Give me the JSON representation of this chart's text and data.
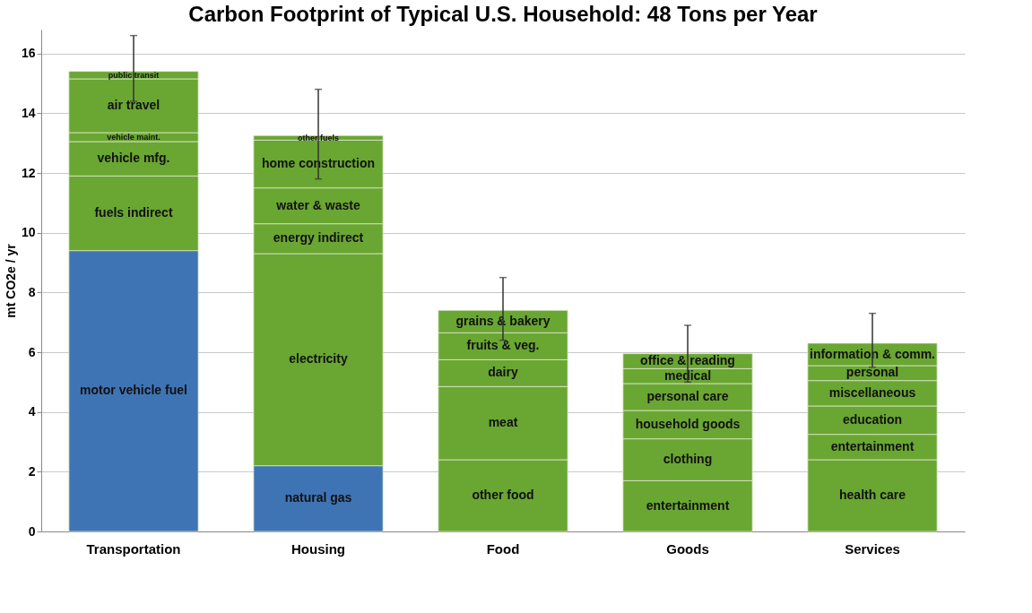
{
  "chart_data": {
    "type": "bar",
    "stacked": true,
    "title": "Carbon Footprint of Typical U.S. Household: 48 Tons per Year",
    "ylabel": "mt CO2e / yr",
    "categories": [
      "Transportation",
      "Housing",
      "Food",
      "Goods",
      "Services"
    ],
    "series": [
      {
        "colors": [
          "#3f74b4",
          "#3f74b4",
          "#6aa632",
          "#6aa632",
          "#6aa632"
        ],
        "values": [
          9.4,
          2.2,
          2.4,
          1.7,
          2.4
        ],
        "value_labels": [
          "motor vehicle fuel",
          "natural gas",
          "other food",
          "entertainment",
          "health care"
        ]
      },
      {
        "color": "#6aa632",
        "values": [
          2.5,
          7.1,
          2.45,
          1.4,
          0.85
        ],
        "value_labels": [
          "fuels indirect",
          "electricity",
          "meat",
          "clothing",
          "entertainment"
        ]
      },
      {
        "color": "#6aa632",
        "values": [
          1.15,
          1.0,
          0.9,
          0.95,
          0.95
        ],
        "value_labels": [
          "vehicle mfg.",
          "energy indirect",
          "dairy",
          "household goods",
          "education"
        ]
      },
      {
        "color": "#6aa632",
        "values": [
          0.3,
          1.2,
          0.9,
          0.9,
          0.85
        ],
        "value_labels": [
          "vehicle maint.",
          "water & waste",
          "fruits & veg.",
          "personal care",
          "miscellaneous"
        ]
      },
      {
        "color": "#6aa632",
        "values": [
          1.8,
          1.6,
          0.75,
          0.5,
          0.5
        ],
        "value_labels": [
          "air travel",
          "home construction",
          "grains & bakery",
          "medical",
          "personal"
        ],
        "errors": [
          null,
          null,
          [
            6.4,
            8.5
          ],
          null,
          null
        ]
      },
      {
        "color": "#6aa632",
        "values": [
          0.25,
          0.15,
          null,
          0.5,
          0.75
        ],
        "value_labels": [
          "public transit",
          "other fuels",
          null,
          "office & reading",
          "information & comm."
        ],
        "errors": [
          [
            14.4,
            16.6
          ],
          [
            11.8,
            14.8
          ],
          null,
          [
            5.0,
            6.9
          ],
          [
            5.5,
            7.3
          ]
        ]
      }
    ],
    "ylim": [
      0,
      16.8
    ],
    "yticks": [
      0,
      2,
      4,
      6,
      8,
      10,
      12,
      14,
      16
    ],
    "grid": "y"
  }
}
